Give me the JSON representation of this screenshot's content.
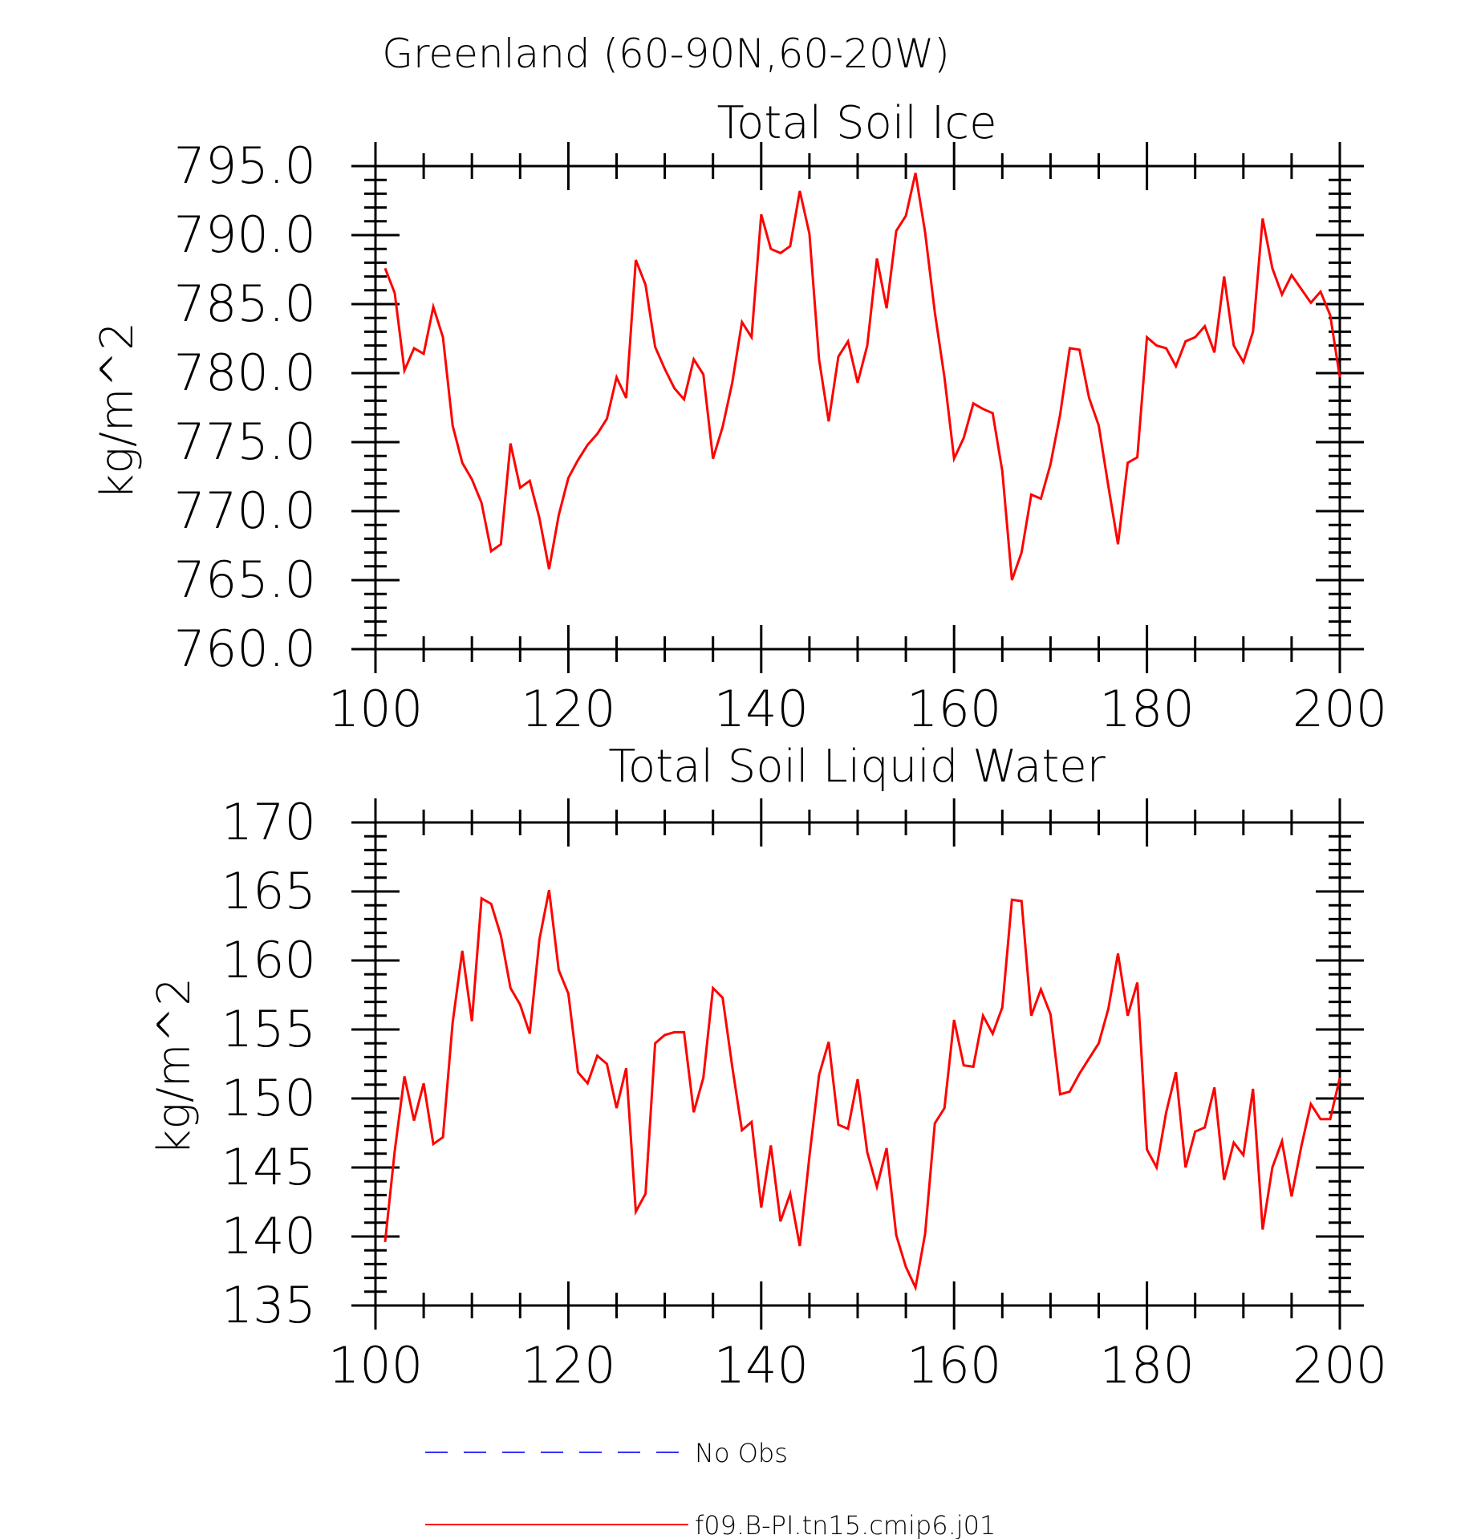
{
  "figure_title": "Greenland (60-90N,60-20W)",
  "chart_data": [
    {
      "type": "line",
      "title": "Total Soil Ice",
      "xlabel": "",
      "ylabel": "kg/m^2",
      "xlim": [
        100,
        200
      ],
      "ylim": [
        760,
        795
      ],
      "x_ticks": [
        100,
        120,
        140,
        160,
        180,
        200
      ],
      "x_tick_labels": [
        "100",
        "120",
        "140",
        "160",
        "180",
        "200"
      ],
      "y_ticks": [
        760,
        765,
        770,
        775,
        780,
        785,
        790,
        795
      ],
      "y_tick_labels": [
        "760.0",
        "765.0",
        "770.0",
        "775.0",
        "780.0",
        "785.0",
        "790.0",
        "795.0"
      ],
      "grid": false,
      "x": [
        101,
        102,
        103,
        104,
        105,
        106,
        107,
        108,
        109,
        110,
        111,
        112,
        113,
        114,
        115,
        116,
        117,
        118,
        119,
        120,
        121,
        122,
        123,
        124,
        125,
        126,
        127,
        128,
        129,
        130,
        131,
        132,
        133,
        134,
        135,
        136,
        137,
        138,
        139,
        140,
        141,
        142,
        143,
        144,
        145,
        146,
        147,
        148,
        149,
        150,
        151,
        152,
        153,
        154,
        155,
        156,
        157,
        158,
        159,
        160,
        161,
        162,
        163,
        164,
        165,
        166,
        167,
        168,
        169,
        170,
        171,
        172,
        173,
        174,
        175,
        176,
        177,
        178,
        179,
        180,
        181,
        182,
        183,
        184,
        185,
        186,
        187,
        188,
        189,
        190,
        191,
        192,
        193,
        194,
        195,
        196,
        197,
        198,
        199,
        200
      ],
      "series": [
        {
          "name": "f09.B-PI.tn15.cmip6.j01",
          "color": "#ff0000",
          "values": [
            787.6,
            785.8,
            780.2,
            781.8,
            781.4,
            784.8,
            782.6,
            776.2,
            773.5,
            772.3,
            770.6,
            767.1,
            767.6,
            774.9,
            771.7,
            772.2,
            769.5,
            765.8,
            769.7,
            772.4,
            773.7,
            774.8,
            775.6,
            776.7,
            779.7,
            778.2,
            788.2,
            786.4,
            781.9,
            780.3,
            778.9,
            778.1,
            781.0,
            779.9,
            773.8,
            776.1,
            779.3,
            783.7,
            782.6,
            791.5,
            789.0,
            788.7,
            789.2,
            793.2,
            790.1,
            781.0,
            776.5,
            781.2,
            782.3,
            779.3,
            782.0,
            788.3,
            784.7,
            790.3,
            791.4,
            794.5,
            790.2,
            784.4,
            779.7,
            773.8,
            775.3,
            777.8,
            777.4,
            777.1,
            772.9,
            765.0,
            767.0,
            771.2,
            770.9,
            773.4,
            777.0,
            781.8,
            781.7,
            778.2,
            776.2,
            771.8,
            767.6,
            773.5,
            773.9,
            782.6,
            782.0,
            781.8,
            780.5,
            782.3,
            782.6,
            783.4,
            781.5,
            787.0,
            782.0,
            780.8,
            783.0,
            791.2,
            787.6,
            785.7,
            787.1,
            786.1,
            785.1,
            785.9,
            784.2,
            779.7
          ]
        }
      ]
    },
    {
      "type": "line",
      "title": "Total Soil Liquid Water",
      "xlabel": "",
      "ylabel": "kg/m^2",
      "xlim": [
        100,
        200
      ],
      "ylim": [
        135,
        170
      ],
      "x_ticks": [
        100,
        120,
        140,
        160,
        180,
        200
      ],
      "x_tick_labels": [
        "100",
        "120",
        "140",
        "160",
        "180",
        "200"
      ],
      "y_ticks": [
        135,
        140,
        145,
        150,
        155,
        160,
        165,
        170
      ],
      "y_tick_labels": [
        "135",
        "140",
        "145",
        "150",
        "155",
        "160",
        "165",
        "170"
      ],
      "grid": false,
      "x": [
        101,
        102,
        103,
        104,
        105,
        106,
        107,
        108,
        109,
        110,
        111,
        112,
        113,
        114,
        115,
        116,
        117,
        118,
        119,
        120,
        121,
        122,
        123,
        124,
        125,
        126,
        127,
        128,
        129,
        130,
        131,
        132,
        133,
        134,
        135,
        136,
        137,
        138,
        139,
        140,
        141,
        142,
        143,
        144,
        145,
        146,
        147,
        148,
        149,
        150,
        151,
        152,
        153,
        154,
        155,
        156,
        157,
        158,
        159,
        160,
        161,
        162,
        163,
        164,
        165,
        166,
        167,
        168,
        169,
        170,
        171,
        172,
        173,
        174,
        175,
        176,
        177,
        178,
        179,
        180,
        181,
        182,
        183,
        184,
        185,
        186,
        187,
        188,
        189,
        190,
        191,
        192,
        193,
        194,
        195,
        196,
        197,
        198,
        199,
        200
      ],
      "series": [
        {
          "name": "f09.B-PI.tn15.cmip6.j01",
          "color": "#ff0000",
          "values": [
            139.6,
            146.2,
            151.6,
            148.4,
            151.1,
            146.7,
            147.2,
            155.5,
            160.7,
            155.6,
            164.5,
            164.1,
            161.8,
            158.0,
            156.8,
            154.7,
            161.5,
            165.1,
            159.3,
            157.6,
            151.9,
            151.1,
            153.1,
            152.5,
            149.3,
            152.2,
            141.8,
            143.1,
            154.0,
            154.6,
            154.8,
            154.8,
            149.0,
            151.5,
            158.0,
            157.3,
            152.3,
            147.7,
            148.3,
            142.1,
            146.6,
            141.1,
            143.1,
            139.3,
            145.8,
            151.7,
            154.1,
            148.1,
            147.8,
            151.4,
            146.1,
            143.6,
            146.4,
            140.1,
            137.8,
            136.3,
            140.2,
            148.2,
            149.3,
            155.7,
            152.4,
            152.3,
            156.0,
            154.7,
            156.6,
            164.4,
            164.3,
            156.0,
            157.9,
            156.1,
            150.3,
            150.5,
            151.8,
            152.9,
            154.0,
            156.5,
            160.5,
            156.0,
            158.4,
            146.3,
            145.0,
            149.0,
            151.9,
            145.0,
            147.6,
            147.9,
            150.8,
            144.1,
            146.8,
            145.9,
            150.7,
            140.5,
            145.0,
            146.9,
            142.9,
            146.5,
            149.6,
            148.5,
            148.5,
            151.5
          ]
        }
      ]
    }
  ],
  "legend": {
    "entries": [
      {
        "label": "No Obs",
        "color": "#3333ff",
        "style": "dashed"
      },
      {
        "label": "f09.B-PI.tn15.cmip6.j01",
        "color": "#ff0000",
        "style": "solid"
      }
    ]
  }
}
